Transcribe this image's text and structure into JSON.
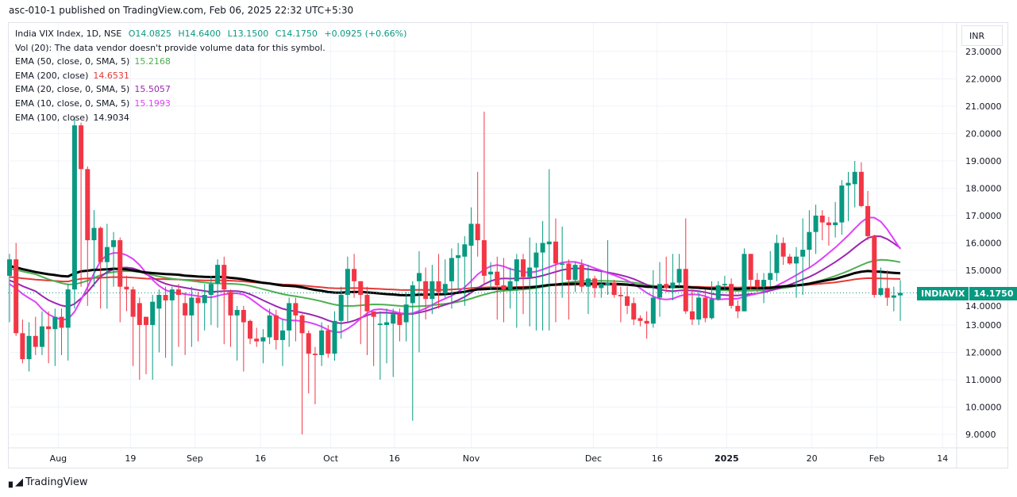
{
  "header": {
    "published": "asc-010-1 published on TradingView.com, Feb 06, 2025 22:32 UTC+5:30"
  },
  "legend": {
    "symbol": "India VIX Index, 1D, NSE",
    "open": "O14.0825",
    "high": "H14.6400",
    "low": "L13.1500",
    "close": "C14.1750",
    "change": "+0.0925 (+0.66%)",
    "volume": "Vol (20): The data vendor doesn't provide volume data for this symbol.",
    "indicators": [
      {
        "label": "EMA (50, close, 0, SMA, 5)",
        "value": "15.2168",
        "color": "#4caf50",
        "length": 50,
        "seed": 15.05
      },
      {
        "label": "EMA (200, close)",
        "value": "14.6531",
        "color": "#e53935",
        "length": 200,
        "seed": 14.75
      },
      {
        "label": "EMA (20, close, 0, SMA, 5)",
        "value": "15.5057",
        "color": "#9c27b0",
        "length": 20,
        "seed": 14.55
      },
      {
        "label": "EMA (10, close, 0, SMA, 5)",
        "value": "15.1993",
        "color": "#e040fb",
        "length": 10,
        "seed": 14.3
      },
      {
        "label": "EMA (100, close)",
        "value": "14.9034",
        "color": "#000000",
        "length": 100,
        "seed": 15.15
      }
    ]
  },
  "currency": "INR",
  "last_price": {
    "symbol": "INDIAVIX",
    "value": "14.1750"
  },
  "footer": {
    "brand": "TradingView",
    "logo": "TV"
  },
  "colors": {
    "up": "#089981",
    "down": "#f23645"
  },
  "chart_data": {
    "type": "candlestick",
    "title": "India VIX Index, 1D, NSE",
    "ylim": [
      8.6,
      23.6
    ],
    "yticks": [
      "9.0000",
      "10.0000",
      "11.0000",
      "12.0000",
      "13.0000",
      "14.0000",
      "15.0000",
      "16.0000",
      "17.0000",
      "18.0000",
      "19.0000",
      "20.0000",
      "21.0000",
      "22.0000",
      "23.0000"
    ],
    "xticks": [
      {
        "label": "Aug",
        "bar": 7.5
      },
      {
        "label": "19",
        "bar": 18.6
      },
      {
        "label": "Sep",
        "bar": 28.5
      },
      {
        "label": "16",
        "bar": 38.6
      },
      {
        "label": "Oct",
        "bar": 49.4
      },
      {
        "label": "16",
        "bar": 59.2
      },
      {
        "label": "Nov",
        "bar": 71
      },
      {
        "label": "Dec",
        "bar": 89.8
      },
      {
        "label": "16",
        "bar": 99.6
      },
      {
        "label": "2025",
        "bar": 110.3
      },
      {
        "label": "20",
        "bar": 123.4
      },
      {
        "label": "Feb",
        "bar": 133.4
      },
      {
        "label": "14",
        "bar": 143.5
      }
    ],
    "ohlc": [
      [
        14.8,
        15.6,
        13.1,
        15.4
      ],
      [
        15.4,
        16.0,
        12.6,
        12.7
      ],
      [
        12.7,
        13.2,
        11.6,
        11.75
      ],
      [
        11.75,
        13.1,
        11.3,
        12.6
      ],
      [
        12.6,
        13.3,
        11.9,
        12.2
      ],
      [
        12.2,
        13.5,
        11.9,
        12.95
      ],
      [
        12.95,
        13.5,
        11.6,
        12.85
      ],
      [
        12.85,
        13.6,
        11.5,
        13.3
      ],
      [
        13.3,
        13.6,
        11.9,
        12.9
      ],
      [
        12.9,
        14.5,
        11.7,
        14.3
      ],
      [
        14.3,
        20.6,
        13.6,
        20.3
      ],
      [
        20.3,
        20.4,
        14.4,
        18.7
      ],
      [
        18.7,
        18.8,
        13.7,
        16.1
      ],
      [
        16.1,
        17.2,
        14.4,
        16.55
      ],
      [
        16.55,
        16.6,
        13.6,
        15.3
      ],
      [
        15.3,
        16.7,
        13.6,
        15.85
      ],
      [
        15.85,
        16.4,
        14.4,
        16.1
      ],
      [
        16.1,
        16.2,
        13.1,
        14.4
      ],
      [
        14.4,
        14.8,
        13.5,
        14.3
      ],
      [
        14.3,
        14.4,
        11.5,
        13.3
      ],
      [
        13.8,
        14.0,
        11.0,
        13.0
      ],
      [
        13.3,
        13.3,
        11.2,
        13.0
      ],
      [
        13.0,
        14.1,
        11.0,
        13.85
      ],
      [
        13.6,
        14.3,
        12.0,
        14.1
      ],
      [
        14.1,
        14.4,
        11.8,
        13.9
      ],
      [
        13.9,
        14.4,
        11.5,
        14.3
      ],
      [
        14.3,
        14.5,
        12.2,
        14.1
      ],
      [
        13.8,
        14.2,
        11.9,
        13.35
      ],
      [
        13.35,
        14.4,
        12.2,
        14.0
      ],
      [
        14.0,
        14.2,
        12.4,
        13.8
      ],
      [
        13.8,
        14.5,
        12.8,
        14.1
      ],
      [
        14.1,
        14.8,
        13.0,
        14.5
      ],
      [
        14.5,
        15.4,
        12.9,
        15.2
      ],
      [
        15.2,
        15.5,
        12.3,
        14.3
      ],
      [
        14.2,
        14.3,
        12.2,
        13.35
      ],
      [
        13.35,
        13.7,
        11.7,
        13.55
      ],
      [
        13.55,
        13.7,
        11.3,
        13.1
      ],
      [
        13.15,
        13.2,
        12.3,
        12.5
      ],
      [
        12.5,
        12.9,
        12.2,
        12.4
      ],
      [
        12.4,
        12.85,
        11.6,
        12.55
      ],
      [
        12.55,
        13.6,
        12.3,
        13.35
      ],
      [
        13.35,
        13.55,
        12.1,
        12.45
      ],
      [
        12.45,
        13.2,
        11.5,
        12.8
      ],
      [
        12.8,
        14.0,
        12.2,
        13.8
      ],
      [
        13.8,
        14.0,
        12.4,
        13.35
      ],
      [
        13.35,
        13.4,
        9.0,
        12.7
      ],
      [
        12.7,
        12.8,
        10.5,
        11.95
      ],
      [
        11.95,
        12.2,
        10.1,
        11.9
      ],
      [
        11.9,
        13.1,
        11.5,
        12.8
      ],
      [
        12.8,
        13.0,
        11.8,
        11.95
      ],
      [
        11.95,
        13.5,
        11.7,
        13.15
      ],
      [
        13.15,
        14.4,
        12.5,
        14.1
      ],
      [
        14.1,
        15.5,
        13.1,
        15.05
      ],
      [
        15.05,
        15.6,
        14.0,
        14.6
      ],
      [
        14.6,
        14.6,
        12.3,
        14.1
      ],
      [
        14.1,
        14.4,
        11.9,
        13.5
      ],
      [
        13.5,
        13.5,
        11.5,
        13.3
      ],
      [
        13.0,
        13.5,
        11.0,
        13.05
      ],
      [
        13.0,
        13.6,
        11.6,
        13.1
      ],
      [
        13.05,
        13.6,
        11.1,
        13.4
      ],
      [
        13.4,
        13.6,
        12.4,
        13.0
      ],
      [
        13.1,
        14.2,
        12.4,
        13.75
      ],
      [
        13.8,
        14.6,
        9.5,
        14.45
      ],
      [
        14.6,
        15.7,
        12.0,
        14.9
      ],
      [
        14.6,
        15.1,
        13.2,
        13.95
      ],
      [
        13.95,
        15.2,
        13.4,
        14.6
      ],
      [
        14.6,
        15.6,
        13.6,
        14.2
      ],
      [
        14.15,
        15.4,
        14.0,
        14.5
      ],
      [
        14.6,
        15.8,
        13.6,
        15.45
      ],
      [
        15.45,
        16.0,
        14.3,
        15.55
      ],
      [
        15.5,
        16.25,
        13.7,
        15.95
      ],
      [
        15.9,
        17.3,
        14.3,
        16.7
      ],
      [
        16.7,
        18.6,
        15.5,
        16.1
      ],
      [
        16.1,
        20.8,
        14.5,
        14.8
      ],
      [
        14.85,
        15.3,
        14.3,
        14.95
      ],
      [
        14.95,
        15.5,
        13.2,
        14.45
      ],
      [
        14.45,
        15.45,
        13.1,
        14.3
      ],
      [
        14.3,
        15.1,
        13.6,
        14.6
      ],
      [
        14.6,
        15.6,
        12.9,
        15.4
      ],
      [
        15.4,
        15.6,
        13.4,
        14.75
      ],
      [
        14.75,
        16.2,
        12.95,
        15.1
      ],
      [
        15.1,
        16.0,
        12.8,
        15.65
      ],
      [
        15.65,
        16.8,
        12.8,
        16.0
      ],
      [
        15.95,
        18.7,
        12.8,
        16.05
      ],
      [
        16.05,
        16.9,
        13.1,
        15.25
      ],
      [
        15.2,
        16.6,
        14.0,
        15.25
      ],
      [
        15.25,
        15.4,
        13.2,
        14.65
      ],
      [
        14.65,
        15.3,
        14.2,
        15.2
      ],
      [
        15.2,
        15.4,
        14.2,
        14.4
      ],
      [
        14.4,
        15.2,
        13.4,
        14.7
      ],
      [
        14.7,
        14.8,
        14.0,
        14.35
      ],
      [
        14.35,
        15.0,
        14.0,
        14.5
      ],
      [
        14.45,
        16.1,
        14.1,
        14.55
      ],
      [
        14.55,
        14.65,
        14.0,
        14.1
      ],
      [
        14.1,
        14.4,
        13.1,
        14.05
      ],
      [
        14.05,
        14.4,
        13.4,
        13.7
      ],
      [
        13.8,
        14.0,
        13.0,
        13.2
      ],
      [
        13.25,
        13.35,
        12.95,
        13.15
      ],
      [
        13.15,
        13.5,
        12.5,
        13.05
      ],
      [
        13.05,
        15.0,
        12.9,
        14.0
      ],
      [
        14.0,
        15.3,
        13.3,
        14.5
      ],
      [
        14.5,
        15.5,
        14.2,
        14.35
      ],
      [
        14.35,
        15.6,
        13.9,
        14.55
      ],
      [
        14.55,
        15.6,
        14.4,
        15.05
      ],
      [
        15.05,
        16.9,
        13.4,
        13.5
      ],
      [
        13.5,
        14.3,
        13.0,
        13.2
      ],
      [
        13.2,
        14.2,
        13.0,
        14.0
      ],
      [
        14.0,
        14.3,
        13.1,
        13.25
      ],
      [
        13.25,
        14.6,
        13.2,
        13.95
      ],
      [
        13.95,
        14.6,
        13.9,
        14.45
      ],
      [
        14.45,
        14.8,
        14.3,
        14.5
      ],
      [
        14.5,
        14.7,
        13.6,
        13.7
      ],
      [
        13.7,
        13.9,
        13.25,
        13.5
      ],
      [
        13.5,
        15.8,
        13.5,
        15.6
      ],
      [
        15.6,
        15.6,
        14.3,
        14.65
      ],
      [
        14.65,
        14.9,
        14.2,
        14.4
      ],
      [
        14.4,
        14.9,
        13.8,
        14.65
      ],
      [
        14.65,
        15.7,
        14.4,
        14.9
      ],
      [
        14.9,
        16.3,
        14.6,
        16.0
      ],
      [
        16.0,
        16.2,
        15.2,
        15.5
      ],
      [
        15.5,
        15.6,
        15.2,
        15.25
      ],
      [
        15.25,
        15.85,
        14.0,
        15.5
      ],
      [
        15.5,
        16.9,
        14.1,
        15.75
      ],
      [
        15.75,
        17.2,
        15.1,
        16.4
      ],
      [
        16.4,
        17.4,
        15.6,
        17.0
      ],
      [
        17.0,
        17.2,
        16.1,
        16.75
      ],
      [
        16.75,
        16.95,
        15.9,
        16.65
      ],
      [
        16.65,
        17.5,
        16.2,
        16.75
      ],
      [
        16.75,
        18.3,
        16.3,
        18.1
      ],
      [
        18.1,
        18.6,
        16.8,
        18.2
      ],
      [
        18.15,
        19.0,
        17.3,
        18.6
      ],
      [
        18.6,
        18.95,
        17.3,
        17.35
      ],
      [
        17.35,
        17.9,
        16.1,
        16.25
      ],
      [
        16.25,
        16.3,
        14.0,
        14.1
      ],
      [
        14.1,
        15.1,
        14.05,
        14.35
      ],
      [
        14.35,
        15.0,
        13.7,
        14.0
      ],
      [
        14.0,
        14.4,
        13.5,
        14.08
      ],
      [
        14.0825,
        14.64,
        13.15,
        14.175
      ]
    ]
  }
}
